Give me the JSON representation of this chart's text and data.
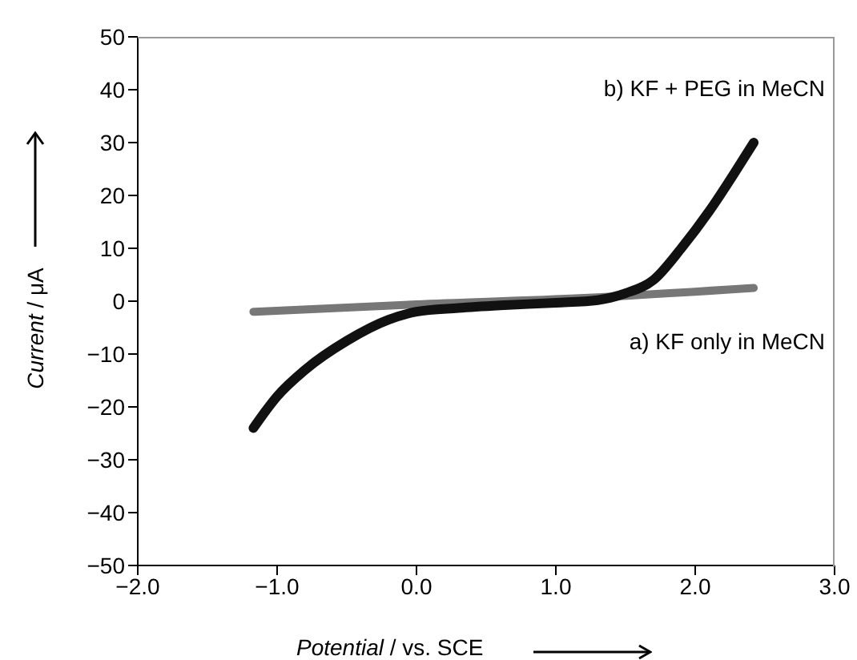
{
  "chart_data": {
    "type": "line",
    "xlabel": "Potential / vs. SCE",
    "ylabel": "Current / μA",
    "xlim": [
      -2,
      3
    ],
    "ylim": [
      -50,
      50
    ],
    "xticks": [
      {
        "value": -2,
        "label": "−2.0"
      },
      {
        "value": -1,
        "label": "−1.0"
      },
      {
        "value": 0,
        "label": "0.0"
      },
      {
        "value": 1,
        "label": "1.0"
      },
      {
        "value": 2,
        "label": "2.0"
      },
      {
        "value": 3,
        "label": "3.0"
      }
    ],
    "yticks": [
      {
        "value": -50,
        "label": "−50"
      },
      {
        "value": -40,
        "label": "−40"
      },
      {
        "value": -30,
        "label": "−30"
      },
      {
        "value": -20,
        "label": "−20"
      },
      {
        "value": -10,
        "label": "−10"
      },
      0,
      10,
      20,
      30,
      40,
      50
    ],
    "grid": false,
    "legend": false,
    "marker": "none",
    "line_style": "solid",
    "series": [
      {
        "name": "a) KF only in MeCN",
        "color": "#777777",
        "x": [
          -1.17,
          0,
          1.2,
          2.42
        ],
        "values": [
          -2,
          -0.6,
          0.6,
          2.5
        ]
      },
      {
        "name": "b) KF + PEG in MeCN",
        "color": "#111111",
        "x": [
          -1.17,
          -1.0,
          -0.8,
          -0.5,
          -0.2,
          0,
          0.3,
          0.6,
          1.0,
          1.3,
          1.5,
          1.7,
          1.9,
          2.1,
          2.3,
          2.42
        ],
        "values": [
          -24,
          -18,
          -13,
          -7.5,
          -3.5,
          -2,
          -1.3,
          -0.8,
          -0.3,
          0.2,
          1.5,
          4,
          10,
          17,
          25,
          30
        ]
      }
    ]
  }
}
